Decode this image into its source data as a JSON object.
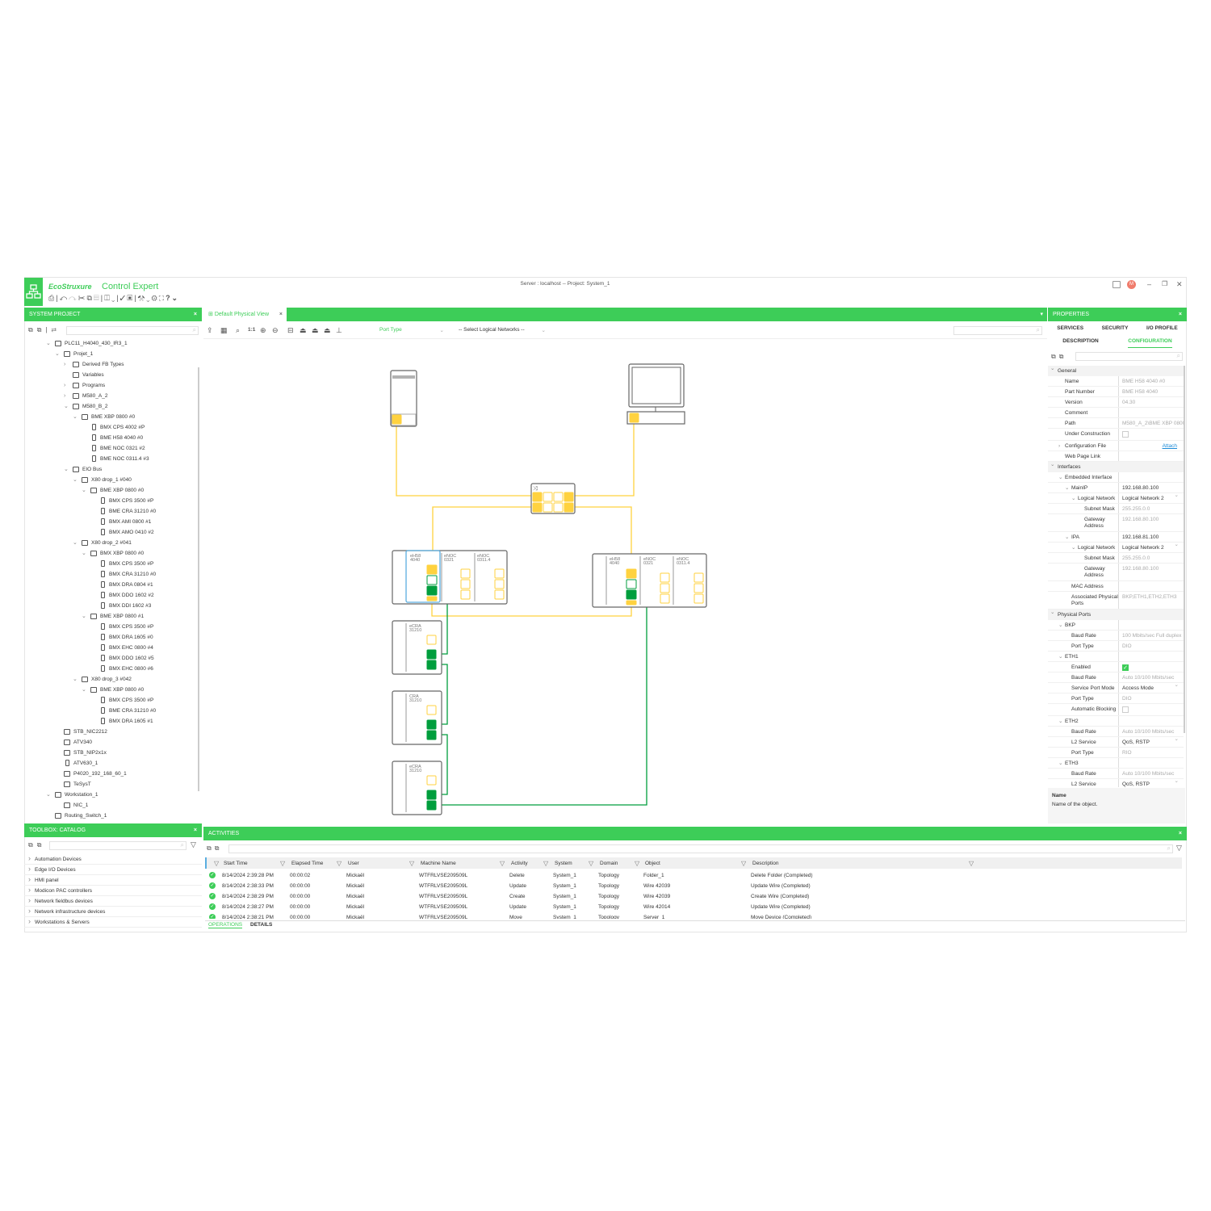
{
  "app": {
    "logo_text": "EcoStruxure",
    "title": "Control Expert",
    "server_info": "Server : localhost -- Project: System_1",
    "user_initial": "M"
  },
  "colors": {
    "brand_green": "#3dcd58",
    "wire_yellow": "#ffd23f",
    "wire_green": "#009e3d",
    "selection_blue": "#5aaee0"
  },
  "toolbar_icons": [
    "print-icon",
    "undo-icon",
    "redo-icon",
    "cut-icon",
    "copy-icon",
    "paste-icon",
    "layout-icon",
    "validate-icon",
    "build-icon",
    "tools-icon",
    "settings-icon",
    "fullscreen-icon",
    "help-icon"
  ],
  "system_project": {
    "title": "SYSTEM PROJECT",
    "tree": [
      {
        "label": "PLC11_H4040_430_IR3_1",
        "level": 0,
        "state": "open",
        "icon": "folder"
      },
      {
        "label": "Projet_1",
        "level": 1,
        "state": "open",
        "icon": "project"
      },
      {
        "label": "Derived FB Types",
        "level": 2,
        "state": "closed",
        "icon": "fb"
      },
      {
        "label": "Variables",
        "level": 2,
        "state": "none",
        "icon": "fb"
      },
      {
        "label": "Programs",
        "level": 2,
        "state": "closed",
        "icon": "fb"
      },
      {
        "label": "M580_A_2",
        "level": 2,
        "state": "closed",
        "icon": "rack"
      },
      {
        "label": "M580_B_2",
        "level": 2,
        "state": "open",
        "icon": "rack"
      },
      {
        "label": "BME XBP 0800 #0",
        "level": 3,
        "state": "open",
        "icon": "rack"
      },
      {
        "label": "BMX CPS 4002 #P",
        "level": 4,
        "state": "none",
        "icon": "mod"
      },
      {
        "label": "BME H58 4040 #0",
        "level": 4,
        "state": "none",
        "icon": "mod"
      },
      {
        "label": "BME NOC 0321 #2",
        "level": 4,
        "state": "none",
        "icon": "mod"
      },
      {
        "label": "BME NOC 0311.4 #3",
        "level": 4,
        "state": "none",
        "icon": "mod"
      },
      {
        "label": "EIO Bus",
        "level": 2,
        "state": "open",
        "icon": "bus"
      },
      {
        "label": "X80 drop_1 #040",
        "level": 3,
        "state": "open",
        "icon": "rack"
      },
      {
        "label": "BME XBP 0800 #0",
        "level": 4,
        "state": "open",
        "icon": "rack"
      },
      {
        "label": "BMX CPS 3500 #P",
        "level": 5,
        "state": "none",
        "icon": "mod"
      },
      {
        "label": "BME CRA 31210 #0",
        "level": 5,
        "state": "none",
        "icon": "mod"
      },
      {
        "label": "BMX AMI 0800 #1",
        "level": 5,
        "state": "none",
        "icon": "mod"
      },
      {
        "label": "BMX AMO 0410 #2",
        "level": 5,
        "state": "none",
        "icon": "mod"
      },
      {
        "label": "X80 drop_2 #041",
        "level": 3,
        "state": "open",
        "icon": "rack"
      },
      {
        "label": "BMX XBP 0800 #0",
        "level": 4,
        "state": "open",
        "icon": "rack"
      },
      {
        "label": "BMX CPS 3500 #P",
        "level": 5,
        "state": "none",
        "icon": "mod"
      },
      {
        "label": "BMX CRA 31210 #0",
        "level": 5,
        "state": "none",
        "icon": "mod"
      },
      {
        "label": "BMX DRA 0804 #1",
        "level": 5,
        "state": "none",
        "icon": "mod"
      },
      {
        "label": "BMX DDO 1602 #2",
        "level": 5,
        "state": "none",
        "icon": "mod"
      },
      {
        "label": "BMX DDI 1602 #3",
        "level": 5,
        "state": "none",
        "icon": "mod"
      },
      {
        "label": "BME XBP 0800 #1",
        "level": 4,
        "state": "open",
        "icon": "rack"
      },
      {
        "label": "BMX CPS 3500 #P",
        "level": 5,
        "state": "none",
        "icon": "mod"
      },
      {
        "label": "BMX DRA 1605 #0",
        "level": 5,
        "state": "none",
        "icon": "mod"
      },
      {
        "label": "BMX EHC 0800 #4",
        "level": 5,
        "state": "none",
        "icon": "mod"
      },
      {
        "label": "BMX DDO 1602 #5",
        "level": 5,
        "state": "none",
        "icon": "mod"
      },
      {
        "label": "BMX EHC 0800 #6",
        "level": 5,
        "state": "none",
        "icon": "mod"
      },
      {
        "label": "X80 drop_3 #042",
        "level": 3,
        "state": "open",
        "icon": "rack"
      },
      {
        "label": "BME XBP 0800 #0",
        "level": 4,
        "state": "open",
        "icon": "rack"
      },
      {
        "label": "BMX CPS 3500 #P",
        "level": 5,
        "state": "none",
        "icon": "mod"
      },
      {
        "label": "BME CRA 31210 #0",
        "level": 5,
        "state": "none",
        "icon": "mod"
      },
      {
        "label": "BMX DRA 1605 #1",
        "level": 5,
        "state": "none",
        "icon": "mod"
      },
      {
        "label": "STB_NIC2212",
        "level": 1,
        "state": "none",
        "icon": "device"
      },
      {
        "label": "ATV340",
        "level": 1,
        "state": "none",
        "icon": "device"
      },
      {
        "label": "STB_NIP2x1x",
        "level": 1,
        "state": "none",
        "icon": "device"
      },
      {
        "label": "ATV630_1",
        "level": 1,
        "state": "none",
        "icon": "mod"
      },
      {
        "label": "P4020_192_168_60_1",
        "level": 1,
        "state": "none",
        "icon": "device"
      },
      {
        "label": "TeSysT",
        "level": 1,
        "state": "none",
        "icon": "device"
      },
      {
        "label": "Workstation_1",
        "level": 0,
        "state": "open",
        "icon": "monitor"
      },
      {
        "label": "NIC_1",
        "level": 1,
        "state": "none",
        "icon": "nic"
      },
      {
        "label": "Routing_Switch_1",
        "level": 0,
        "state": "none",
        "icon": "switch"
      }
    ]
  },
  "toolbox": {
    "title": "TOOLBOX: CATALOG",
    "items": [
      "Automation Devices",
      "Edge I/O Devices",
      "HMI panel",
      "Modicon PAC controllers",
      "Network fieldbus devices",
      "Network infrastructure devices",
      "Workstations & Servers"
    ]
  },
  "diagram": {
    "tab_label": "Default Physical View",
    "port_type_label": "Port Type",
    "logical_networks_placeholder": "-- Select Logical Networks --",
    "zoom_label": "1:1",
    "racks": [
      {
        "modules": [
          "eH58\n4040",
          "eNOC\n0321",
          "eNOC\n0311.4"
        ],
        "selected": true
      },
      {
        "modules": [
          "eH58\n4040",
          "eNOC\n0321",
          "eNOC\n0311.4"
        ],
        "selected": false
      }
    ],
    "drops": [
      "eCRA\n31210",
      "CRA\n31210",
      "eCRA\n31210"
    ]
  },
  "properties": {
    "title": "PROPERTIES",
    "tabs_row1": [
      "SERVICES",
      "SECURITY",
      "I/O PROFILE"
    ],
    "tabs_row2": [
      "DESCRIPTION",
      "CONFIGURATION"
    ],
    "active_tab": "CONFIGURATION",
    "rows": [
      {
        "type": "section",
        "label": "General"
      },
      {
        "label": "Name",
        "value": "BME H58 4040 #0",
        "indent": 0,
        "style": "muted"
      },
      {
        "label": "Part Number",
        "value": "BME H58 4040",
        "indent": 0,
        "style": "muted"
      },
      {
        "label": "Version",
        "value": "04.30",
        "indent": 0,
        "style": "muted"
      },
      {
        "label": "Comment",
        "value": "",
        "indent": 0
      },
      {
        "label": "Path",
        "value": "M580_A_2\\BME XBP 0800",
        "indent": 0,
        "style": "muted"
      },
      {
        "label": "Under Construction",
        "value": "",
        "indent": 0,
        "style": "checkbox",
        "checked": false
      },
      {
        "label": "Configuration File",
        "value": "Attach",
        "indent": 0,
        "style": "link",
        "chev": ">"
      },
      {
        "label": "Web Page Link",
        "value": "",
        "indent": 0
      },
      {
        "type": "section",
        "label": "Interfaces"
      },
      {
        "label": "Embedded Interface",
        "value": "",
        "indent": 0,
        "chev": "v"
      },
      {
        "label": "MainIP",
        "value": "192.168.80.100",
        "indent": 1,
        "chev": "v"
      },
      {
        "label": "Logical Network",
        "value": "Logical Network 2",
        "indent": 2,
        "chev": "v",
        "style": "dropdown"
      },
      {
        "label": "Subnet Mask",
        "value": "255.255.0.0",
        "indent": 3,
        "style": "muted"
      },
      {
        "label": "Gateway Address",
        "value": "192.168.80.100",
        "indent": 3,
        "style": "muted",
        "tall": true
      },
      {
        "label": "IPA",
        "value": "192.168.81.100",
        "indent": 1,
        "chev": "v"
      },
      {
        "label": "Logical Network",
        "value": "Logical Network 2",
        "indent": 2,
        "chev": "v",
        "style": "dropdown"
      },
      {
        "label": "Subnet Mask",
        "value": "255.255.0.0",
        "indent": 3,
        "style": "muted"
      },
      {
        "label": "Gateway Address",
        "value": "192.168.80.100",
        "indent": 3,
        "style": "muted",
        "tall": true
      },
      {
        "label": "MAC Address",
        "value": "",
        "indent": 1
      },
      {
        "label": "Associated Physical Ports",
        "value": "BKP,ETH1,ETH2,ETH3",
        "indent": 1,
        "style": "muted",
        "tall": true
      },
      {
        "type": "section",
        "label": "Physical Ports"
      },
      {
        "label": "BKP",
        "value": "",
        "indent": 0,
        "chev": "v"
      },
      {
        "label": "Baud Rate",
        "value": "100 Mbits/sec Full duplex",
        "indent": 1,
        "style": "muted"
      },
      {
        "label": "Port Type",
        "value": "DIO",
        "indent": 1,
        "style": "muted"
      },
      {
        "label": "ETH1",
        "value": "",
        "indent": 0,
        "chev": "v"
      },
      {
        "label": "Enabled",
        "value": "",
        "indent": 1,
        "style": "checkbox",
        "checked": true
      },
      {
        "label": "Baud Rate",
        "value": "Auto 10/100 Mbits/sec",
        "indent": 1,
        "style": "muted"
      },
      {
        "label": "Service Port Mode",
        "value": "Access Mode",
        "indent": 1,
        "style": "dropdown"
      },
      {
        "label": "Port Type",
        "value": "DIO",
        "indent": 1,
        "style": "muted"
      },
      {
        "label": "Automatic Blocking",
        "value": "",
        "indent": 1,
        "style": "checkbox",
        "checked": false
      },
      {
        "label": "ETH2",
        "value": "",
        "indent": 0,
        "chev": "v"
      },
      {
        "label": "Baud Rate",
        "value": "Auto 10/100 Mbits/sec",
        "indent": 1,
        "style": "muted"
      },
      {
        "label": "L2 Service",
        "value": "QoS, RSTP",
        "indent": 1,
        "style": "dropdown"
      },
      {
        "label": "Port Type",
        "value": "RIO",
        "indent": 1,
        "style": "muted"
      },
      {
        "label": "ETH3",
        "value": "",
        "indent": 0,
        "chev": "v"
      },
      {
        "label": "Baud Rate",
        "value": "Auto 10/100 Mbits/sec",
        "indent": 1,
        "style": "muted"
      },
      {
        "label": "L2 Service",
        "value": "QoS, RSTP",
        "indent": 1,
        "style": "dropdown"
      }
    ],
    "help_title": "Name",
    "help_text": "Name of the object."
  },
  "activities": {
    "title": "ACTIVITIES",
    "columns": [
      "Start Time",
      "Elapsed Time",
      "User",
      "Machine Name",
      "Activity",
      "System",
      "Domain",
      "Object",
      "Description"
    ],
    "rows": [
      [
        "8/14/2024 2:39:28 PM",
        "00:00:02",
        "Mickaël",
        "WTFRLVSE209509L",
        "Delete",
        "System_1",
        "Topology",
        "Folder_1",
        "Delete Folder (Completed)"
      ],
      [
        "8/14/2024 2:38:33 PM",
        "00:00:00",
        "Mickaël",
        "WTFRLVSE209509L",
        "Update",
        "System_1",
        "Topology",
        "Wire 42039",
        "Update Wire (Completed)"
      ],
      [
        "8/14/2024 2:38:29 PM",
        "00:00:00",
        "Mickaël",
        "WTFRLVSE209509L",
        "Create",
        "System_1",
        "Topology",
        "Wire 42039",
        "Create Wire (Completed)"
      ],
      [
        "8/14/2024 2:38:27 PM",
        "00:00:00",
        "Mickaël",
        "WTFRLVSE209509L",
        "Update",
        "System_1",
        "Topology",
        "Wire 42014",
        "Update Wire (Completed)"
      ],
      [
        "8/14/2024 2:38:21 PM",
        "00:00:00",
        "Mickaël",
        "WTFRLVSE209509L",
        "Move",
        "System_1",
        "Topology",
        "Server_1",
        "Move Device (Completed)"
      ]
    ],
    "bottom_tabs": [
      "OPERATIONS",
      "DETAILS"
    ],
    "active_bottom_tab": "OPERATIONS"
  }
}
